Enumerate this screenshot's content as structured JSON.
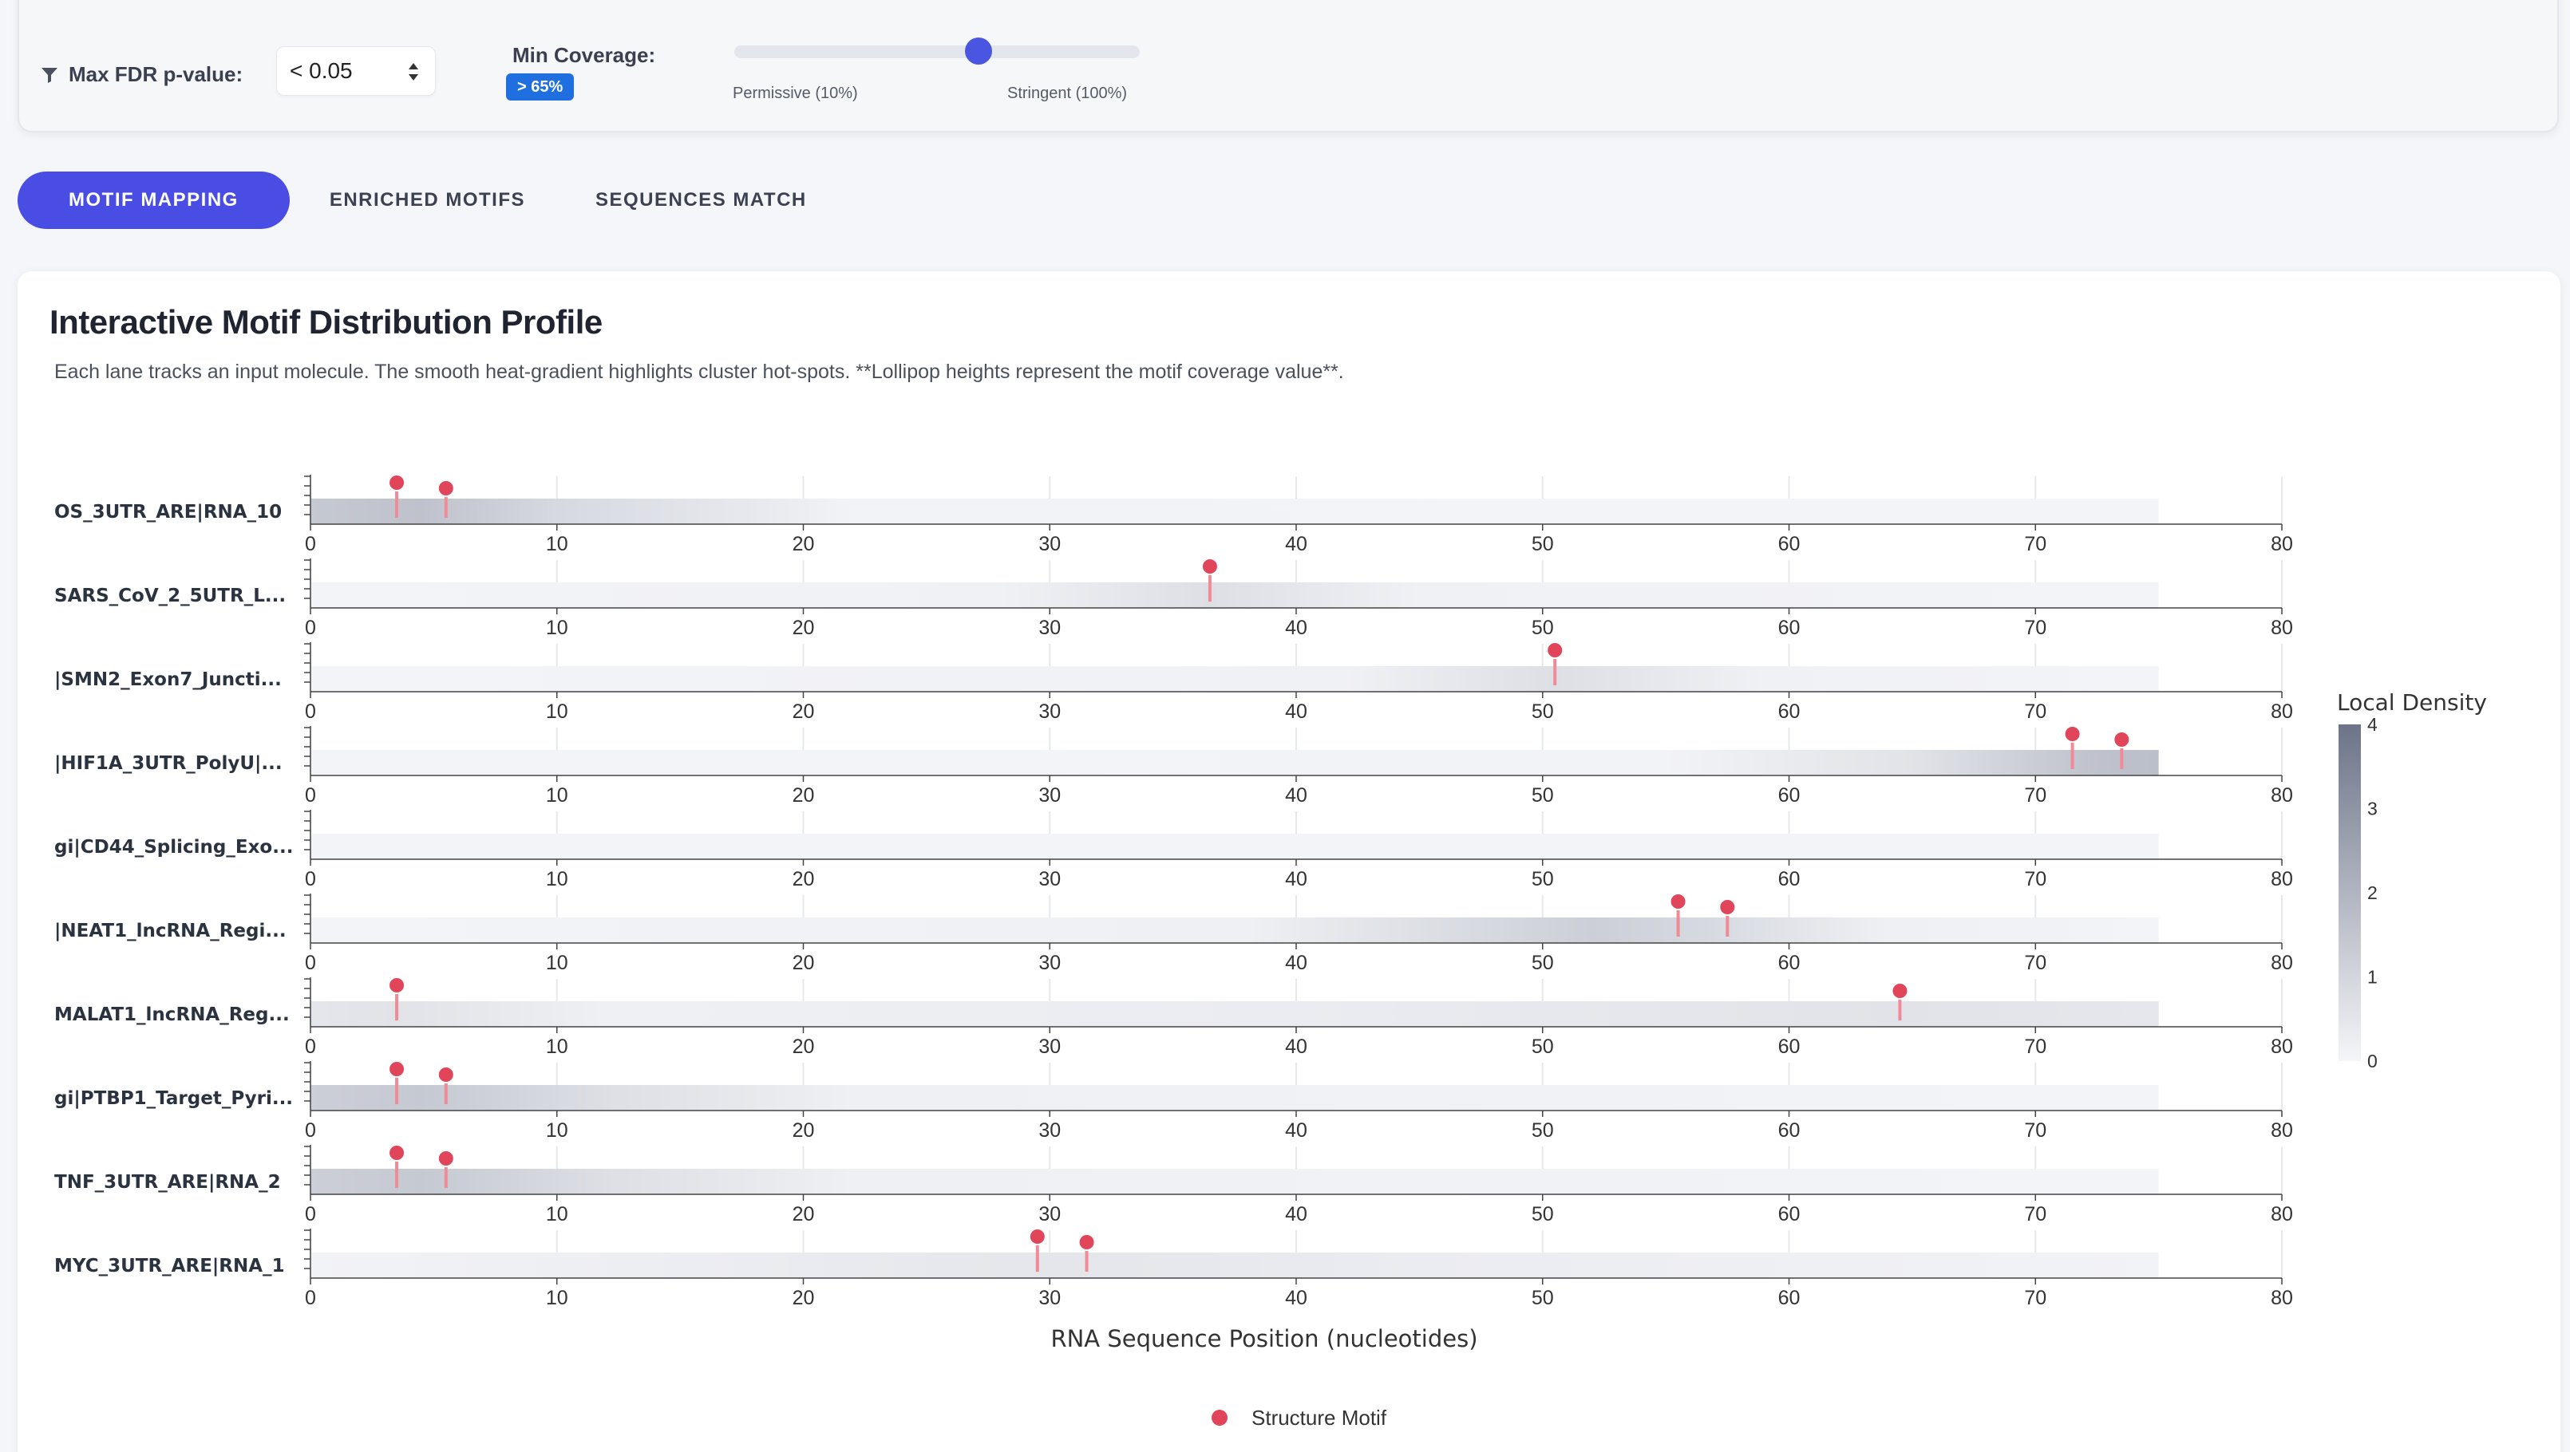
{
  "filters": {
    "fdr_label": "Max FDR p-value:",
    "fdr_value": "< 0.05",
    "coverage_label": "Min Coverage:",
    "coverage_badge": "> 65%",
    "coverage_level_percent": 65,
    "slider_min_label": "Permissive (10%)",
    "slider_max_label": "Stringent (100%)"
  },
  "tabs": [
    {
      "label": "MOTIF MAPPING",
      "active": true
    },
    {
      "label": "ENRICHED MOTIFS",
      "active": false
    },
    {
      "label": "SEQUENCES MATCH",
      "active": false
    }
  ],
  "card": {
    "title": "Interactive Motif Distribution Profile",
    "description": "Each lane tracks an input molecule. The smooth heat-gradient highlights cluster hot-spots. **Lollipop heights represent the motif coverage value**."
  },
  "chart_data": {
    "type": "scatter",
    "xlabel": "RNA Sequence Position (nucleotides)",
    "xlim": [
      0,
      80
    ],
    "xticks": [
      0,
      10,
      20,
      30,
      40,
      50,
      60,
      70,
      80
    ],
    "lane_length": 75,
    "legend": {
      "label": "Structure Motif",
      "color": "#e0455a",
      "position": "bottom-center"
    },
    "colorbar": {
      "title": "Local Density",
      "range": [
        0,
        4
      ],
      "ticks": [
        0,
        1,
        2,
        3,
        4
      ],
      "color_low": "#f5f6f9",
      "color_high": "#6d7488"
    },
    "lanes": [
      {
        "label": "OS_3UTR_ARE|RNA_10",
        "motifs": [
          {
            "x": 3.5
          },
          {
            "x": 5.5
          }
        ],
        "density": [
          {
            "x": 0,
            "v": 1.4
          },
          {
            "x": 4.5,
            "v": 1.6
          },
          {
            "x": 10,
            "v": 0.9
          },
          {
            "x": 18,
            "v": 0.4
          },
          {
            "x": 22,
            "v": 0.1
          },
          {
            "x": 75,
            "v": 0.05
          }
        ]
      },
      {
        "label": "SARS_CoV_2_5UTR_L...",
        "motifs": [
          {
            "x": 36.5
          }
        ],
        "density": [
          {
            "x": 0,
            "v": 0.05
          },
          {
            "x": 28,
            "v": 0.15
          },
          {
            "x": 36.5,
            "v": 0.7
          },
          {
            "x": 45,
            "v": 0.15
          },
          {
            "x": 75,
            "v": 0.05
          }
        ]
      },
      {
        "label": "|SMN2_Exon7_Juncti...",
        "motifs": [
          {
            "x": 50.5
          }
        ],
        "density": [
          {
            "x": 0,
            "v": 0.05
          },
          {
            "x": 42,
            "v": 0.15
          },
          {
            "x": 50.5,
            "v": 0.7
          },
          {
            "x": 59,
            "v": 0.15
          },
          {
            "x": 75,
            "v": 0.05
          }
        ]
      },
      {
        "label": "|HIF1A_3UTR_PolyU|...",
        "motifs": [
          {
            "x": 71.5
          },
          {
            "x": 73.5
          }
        ],
        "density": [
          {
            "x": 0,
            "v": 0.05
          },
          {
            "x": 55,
            "v": 0.1
          },
          {
            "x": 65,
            "v": 0.6
          },
          {
            "x": 72.5,
            "v": 1.6
          },
          {
            "x": 75,
            "v": 1.7
          }
        ]
      },
      {
        "label": "gi|CD44_Splicing_Exo...",
        "motifs": [],
        "density": [
          {
            "x": 0,
            "v": 0.05
          },
          {
            "x": 75,
            "v": 0.05
          }
        ]
      },
      {
        "label": "|NEAT1_lncRNA_Regi...",
        "motifs": [
          {
            "x": 55.5
          },
          {
            "x": 57.5
          }
        ],
        "density": [
          {
            "x": 0,
            "v": 0.05
          },
          {
            "x": 38,
            "v": 0.2
          },
          {
            "x": 52,
            "v": 1.2
          },
          {
            "x": 56.5,
            "v": 0.9
          },
          {
            "x": 64,
            "v": 0.2
          },
          {
            "x": 75,
            "v": 0.05
          }
        ]
      },
      {
        "label": "MALAT1_lncRNA_Reg...",
        "motifs": [
          {
            "x": 3.5
          },
          {
            "x": 64.5
          }
        ],
        "density": [
          {
            "x": 0,
            "v": 0.5
          },
          {
            "x": 3.5,
            "v": 0.6
          },
          {
            "x": 12,
            "v": 0.2
          },
          {
            "x": 40,
            "v": 0.3
          },
          {
            "x": 64.5,
            "v": 0.6
          },
          {
            "x": 75,
            "v": 0.45
          }
        ]
      },
      {
        "label": "gi|PTBP1_Target_Pyri...",
        "motifs": [
          {
            "x": 3.5
          },
          {
            "x": 5.5
          }
        ],
        "density": [
          {
            "x": 0,
            "v": 1.2
          },
          {
            "x": 4.5,
            "v": 1.4
          },
          {
            "x": 12,
            "v": 0.7
          },
          {
            "x": 22,
            "v": 0.2
          },
          {
            "x": 75,
            "v": 0.05
          }
        ]
      },
      {
        "label": "TNF_3UTR_ARE|RNA_2",
        "motifs": [
          {
            "x": 3.5
          },
          {
            "x": 5.5
          }
        ],
        "density": [
          {
            "x": 0,
            "v": 1.2
          },
          {
            "x": 4.5,
            "v": 1.4
          },
          {
            "x": 12,
            "v": 0.7
          },
          {
            "x": 22,
            "v": 0.2
          },
          {
            "x": 75,
            "v": 0.05
          }
        ]
      },
      {
        "label": "MYC_3UTR_ARE|RNA_1",
        "motifs": [
          {
            "x": 29.5
          },
          {
            "x": 31.5
          }
        ],
        "density": [
          {
            "x": 0,
            "v": 0.1
          },
          {
            "x": 18,
            "v": 0.3
          },
          {
            "x": 30.5,
            "v": 0.5
          },
          {
            "x": 45,
            "v": 0.3
          },
          {
            "x": 75,
            "v": 0.1
          }
        ]
      }
    ]
  }
}
